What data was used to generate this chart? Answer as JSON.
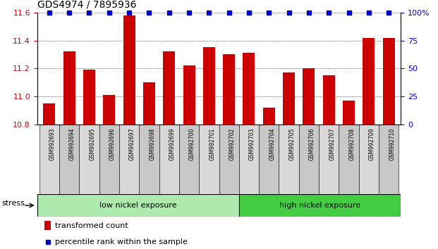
{
  "title": "GDS4974 / 7895936",
  "samples": [
    "GSM992693",
    "GSM992694",
    "GSM992695",
    "GSM992696",
    "GSM992697",
    "GSM992698",
    "GSM992699",
    "GSM992700",
    "GSM992701",
    "GSM992702",
    "GSM992703",
    "GSM992704",
    "GSM992705",
    "GSM992706",
    "GSM992707",
    "GSM992708",
    "GSM992709",
    "GSM992710"
  ],
  "values": [
    10.95,
    11.32,
    11.19,
    11.01,
    11.58,
    11.1,
    11.32,
    11.22,
    11.35,
    11.3,
    11.31,
    10.92,
    11.17,
    11.2,
    11.15,
    10.97,
    11.42,
    11.42
  ],
  "ylim_left": [
    10.8,
    11.6
  ],
  "ylim_right": [
    0,
    100
  ],
  "yticks_left": [
    10.8,
    11.0,
    11.2,
    11.4,
    11.6
  ],
  "yticks_right": [
    0,
    25,
    50,
    75,
    100
  ],
  "ytick_labels_right": [
    "0",
    "25",
    "50",
    "75",
    "100%"
  ],
  "bar_color": "#cc0000",
  "dot_color": "#0000cc",
  "group1_label": "low nickel exposure",
  "group2_label": "high nickel exposure",
  "group1_color": "#aeeaae",
  "group2_color": "#44cc44",
  "group1_count": 10,
  "stress_label": "stress",
  "legend_bar_label": "transformed count",
  "legend_dot_label": "percentile rank within the sample",
  "bg_color": "#ffffff",
  "xtick_box_color": "#cccccc",
  "grid_color": "#000000",
  "tick_label_color_left": "#cc0000",
  "tick_label_color_right": "#0000cc"
}
